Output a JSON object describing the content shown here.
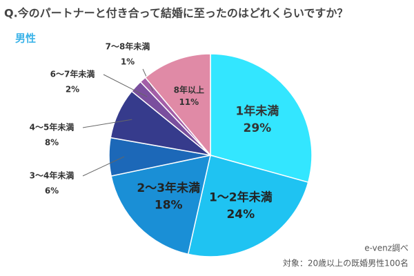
{
  "chart_data": {
    "type": "pie",
    "title": "Q.今のパートナーと付き合って結婚に至ったのはどれくらいですか？",
    "subtitle": "男性",
    "categories": [
      "1年未満",
      "1〜2年未満",
      "2〜3年未満",
      "3〜4年未満",
      "4〜5年未満",
      "6〜7年未満",
      "7〜8年未満",
      "8年以上"
    ],
    "values": [
      29,
      24,
      18,
      6,
      8,
      2,
      1,
      11
    ],
    "value_labels": [
      "29%",
      "24%",
      "18%",
      "6%",
      "8%",
      "2%",
      "1%",
      "11%"
    ],
    "colors": [
      "#33e6ff",
      "#1fc3f2",
      "#1a8fd6",
      "#1c68b8",
      "#363b8c",
      "#7a4f9e",
      "#a35ea8",
      "#e08aa6"
    ],
    "source": "e-venz調べ",
    "note": "対象：20歳以上の既婚男性100名"
  }
}
